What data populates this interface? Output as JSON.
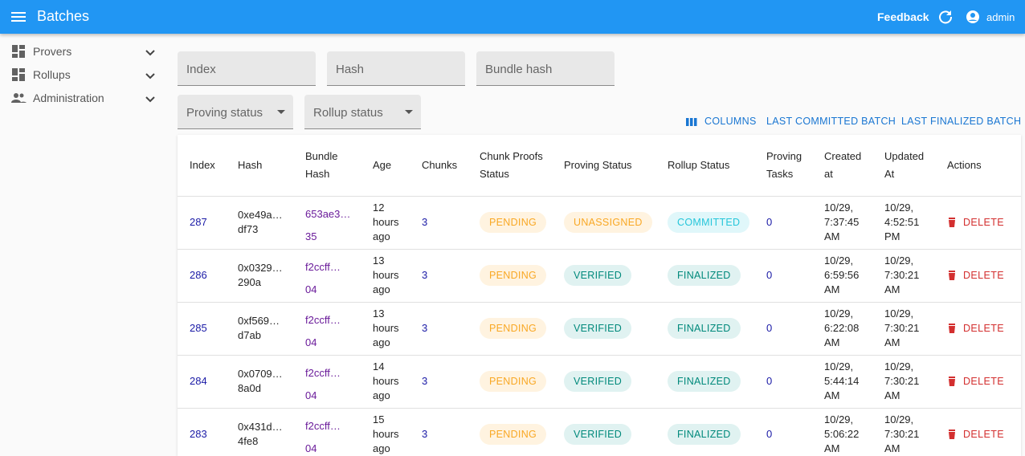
{
  "app_bar": {
    "title": "Batches",
    "feedback": "Feedback",
    "user": "admin"
  },
  "sidebar": {
    "items": [
      "Provers",
      "Rollups",
      "Administration"
    ]
  },
  "filters": {
    "text_fields": [
      "Index",
      "Hash",
      "Bundle hash"
    ],
    "selects": [
      "Proving status",
      "Rollup status"
    ]
  },
  "toolbar": {
    "buttons": [
      "COLUMNS",
      "LAST COMMITTED BATCH",
      "LAST FINALIZED BATCH"
    ]
  },
  "table": {
    "headers": [
      "Index",
      "Hash",
      "Bundle Hash",
      "Age",
      "Chunks",
      "Chunk Proofs Status",
      "Proving Status",
      "Rollup Status",
      "Proving Tasks",
      "Created at",
      "Updated At",
      "Actions"
    ],
    "rows": [
      {
        "index": "287",
        "hash": [
          "0xe49a…",
          "df73"
        ],
        "bundle_hash": [
          "653ae3…",
          "35"
        ],
        "age": "12 hours ago",
        "chunks": "3",
        "chunk_proofs_status": "PENDING",
        "proving_status": "UNASSIGNED",
        "rollup_status": "COMMITTED",
        "proving_tasks": "0",
        "created_at": "10/29, 7:37:45 AM",
        "updated_at": "10/29, 4:52:51 PM",
        "action": "DELETE"
      },
      {
        "index": "286",
        "hash": [
          "0x0329…",
          "290a"
        ],
        "bundle_hash": [
          "f2ccff…",
          "04"
        ],
        "age": "13 hours ago",
        "chunks": "3",
        "chunk_proofs_status": "PENDING",
        "proving_status": "VERIFIED",
        "rollup_status": "FINALIZED",
        "proving_tasks": "0",
        "created_at": "10/29, 6:59:56 AM",
        "updated_at": "10/29, 7:30:21 AM",
        "action": "DELETE"
      },
      {
        "index": "285",
        "hash": [
          "0xf569…",
          "d7ab"
        ],
        "bundle_hash": [
          "f2ccff…",
          "04"
        ],
        "age": "13 hours ago",
        "chunks": "3",
        "chunk_proofs_status": "PENDING",
        "proving_status": "VERIFIED",
        "rollup_status": "FINALIZED",
        "proving_tasks": "0",
        "created_at": "10/29, 6:22:08 AM",
        "updated_at": "10/29, 7:30:21 AM",
        "action": "DELETE"
      },
      {
        "index": "284",
        "hash": [
          "0x0709…",
          "8a0d"
        ],
        "bundle_hash": [
          "f2ccff…",
          "04"
        ],
        "age": "14 hours ago",
        "chunks": "3",
        "chunk_proofs_status": "PENDING",
        "proving_status": "VERIFIED",
        "rollup_status": "FINALIZED",
        "proving_tasks": "0",
        "created_at": "10/29, 5:44:14 AM",
        "updated_at": "10/29, 7:30:21 AM",
        "action": "DELETE"
      },
      {
        "index": "283",
        "hash": [
          "0x431d…",
          "4fe8"
        ],
        "bundle_hash": [
          "f2ccff…",
          "04"
        ],
        "age": "15 hours ago",
        "chunks": "3",
        "chunk_proofs_status": "PENDING",
        "proving_status": "VERIFIED",
        "rollup_status": "FINALIZED",
        "proving_tasks": "0",
        "created_at": "10/29, 5:06:22 AM",
        "updated_at": "10/29, 7:30:21 AM",
        "action": "DELETE"
      }
    ]
  }
}
